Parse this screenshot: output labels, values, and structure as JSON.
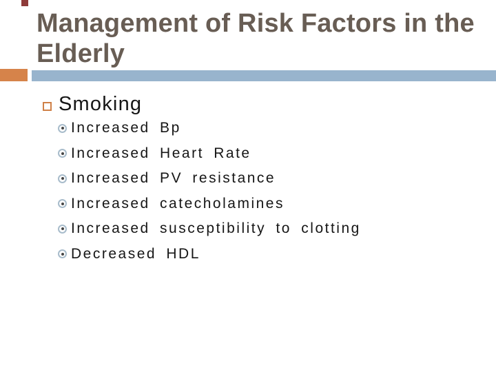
{
  "slide": {
    "title": {
      "line1": "Management of Risk Factors in the",
      "line2": "Elderly"
    },
    "heading": "Smoking",
    "sub_bullets": [
      "Increased Bp",
      "Increased Heart Rate",
      "Increased PV resistance",
      "Increased catecholamines",
      "Increased susceptibility to clotting",
      "Decreased HDL"
    ],
    "icons": {
      "heading_bullet": "square-outline-icon",
      "sub_bullet": "circled-dot-icon"
    },
    "colors": {
      "background": "#FFFFFF",
      "title_text": "#685D54",
      "body_text": "#161616",
      "accent_orange": "#D6834A",
      "accent_blue": "#98B4CD",
      "bullet_square_border": "#CF8047",
      "bullet_ring": "#A8BCCB",
      "bullet_dot": "#454545",
      "top_tab": "#8E3B3A"
    }
  }
}
